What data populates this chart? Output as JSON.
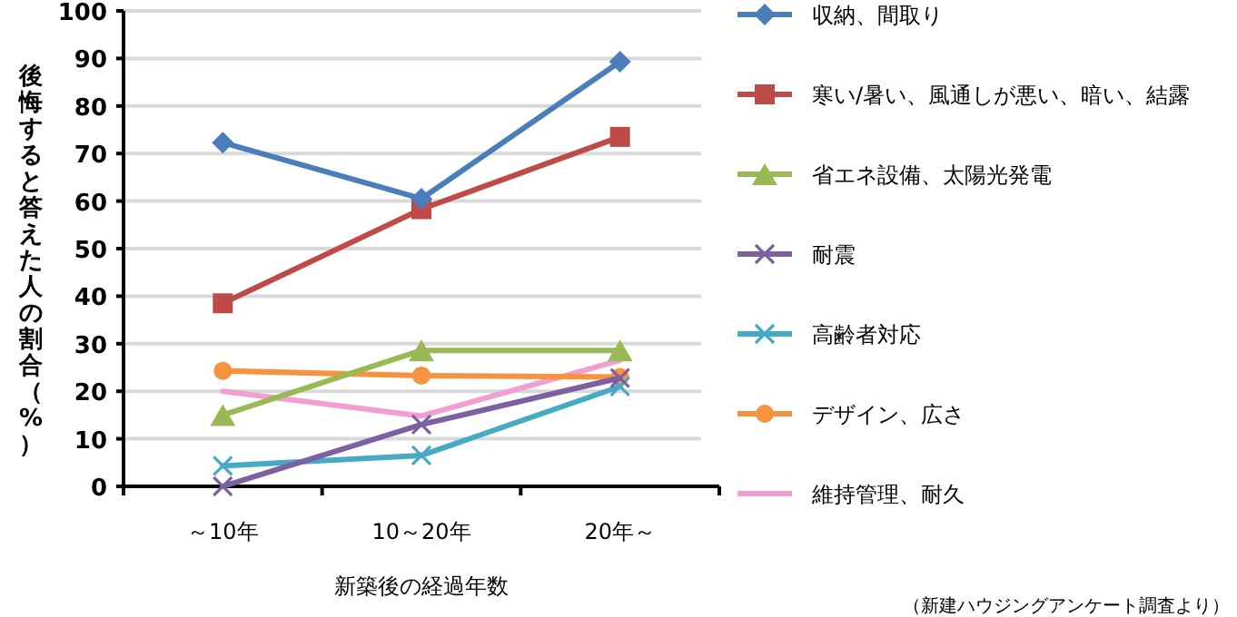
{
  "chart_data": {
    "type": "line",
    "xlabel": "新築後の経過年数",
    "ylabel": "後悔すると答えた人の割合（%）",
    "categories": [
      "～10年",
      "10～20年",
      "20年～"
    ],
    "ylim": [
      0,
      100
    ],
    "yticks": [
      0,
      10,
      20,
      30,
      40,
      50,
      60,
      70,
      80,
      90,
      100
    ],
    "grid": "y",
    "legend": "right",
    "annotations": [
      "（新建ハウジングアンケート調査より）"
    ],
    "series": [
      {
        "name": "収納、間取り",
        "color": "#4a7ebb",
        "marker": "diamond",
        "values": [
          72.3,
          60.5,
          89.3
        ]
      },
      {
        "name": "寒い/暑い、風通しが悪い、暗い、結露",
        "color": "#be4b48",
        "marker": "square",
        "values": [
          38.5,
          58.3,
          73.5
        ]
      },
      {
        "name": "省エネ設備、太陽光発電",
        "color": "#98b954",
        "marker": "triangle",
        "values": [
          15,
          28.6,
          28.6
        ]
      },
      {
        "name": "耐震",
        "color": "#7d60a0",
        "marker": "cross",
        "values": [
          0,
          13,
          22.8
        ]
      },
      {
        "name": "高齢者対応",
        "color": "#46aac5",
        "marker": "cross",
        "values": [
          4.3,
          6.5,
          21
        ]
      },
      {
        "name": "デザイン、広さ",
        "color": "#f69240",
        "marker": "circle",
        "values": [
          24.3,
          23.3,
          23
        ]
      },
      {
        "name": "維持管理、耐久",
        "color": "#f19ed2",
        "marker": "none",
        "values": [
          20,
          14.8,
          26.5
        ]
      }
    ]
  }
}
